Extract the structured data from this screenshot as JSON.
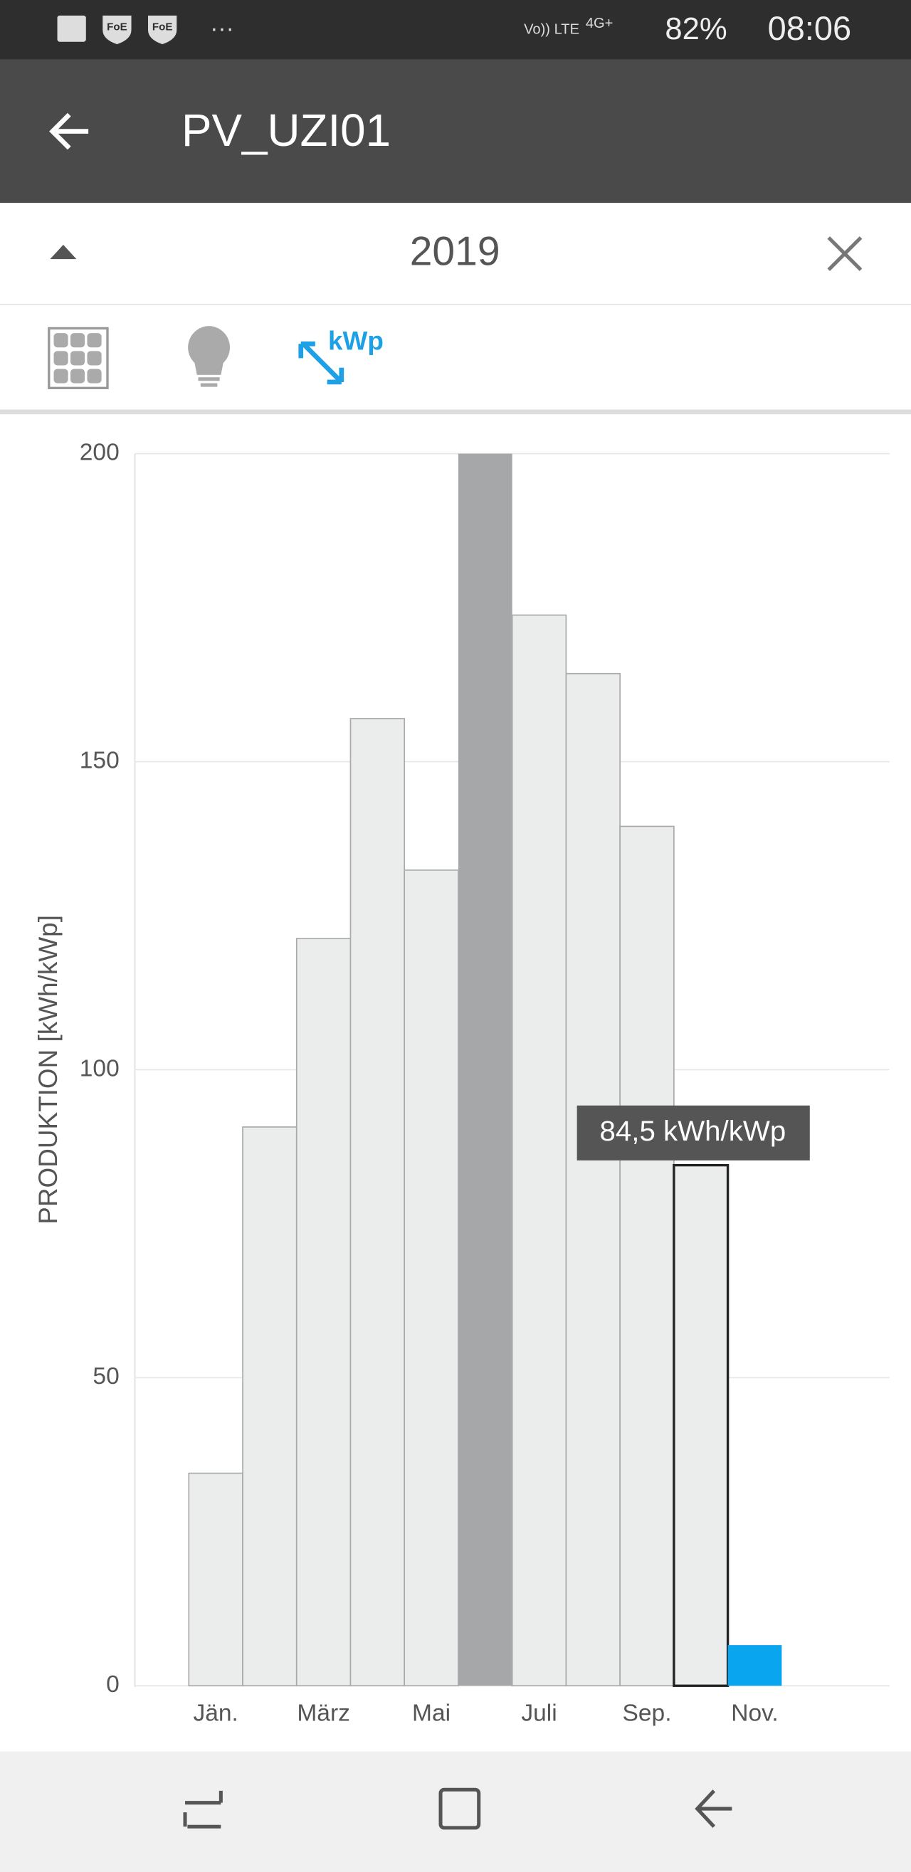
{
  "status_bar": {
    "icons_left": [
      "FoE",
      "FoE",
      "···"
    ],
    "network": "Vo)) LTE",
    "signal": "4G+",
    "battery": "82%",
    "time": "08:06"
  },
  "app_bar": {
    "title": "PV_UZI01"
  },
  "period": {
    "year": "2019"
  },
  "toolbar": {
    "unit_button": "kWp"
  },
  "chart_data": {
    "type": "bar",
    "y_label": "PRODUKTION [kWh/kWp]",
    "categories": [
      "Jän.",
      null,
      "März",
      null,
      "Mai",
      null,
      "Juli",
      null,
      "Sep.",
      null,
      "Nov.",
      null
    ],
    "values": [
      34.5,
      90.7,
      121.3,
      157,
      132.4,
      200,
      173.8,
      164.3,
      139.5,
      84.5,
      6.6,
      null
    ],
    "colors": [
      "#ebecec",
      "#ebecec",
      "#ebecec",
      "#ebecec",
      "#ebecec",
      "#a6a7a9",
      "#ebecec",
      "#ebecec",
      "#ebecec",
      "#ebecec",
      "#0aa5ef",
      "#ebecec"
    ],
    "selected": 9,
    "tooltip": "84,5 kWh/kWp",
    "ylim": [
      0,
      200
    ],
    "yticks": [
      0,
      50,
      100,
      150,
      200
    ],
    "grid": true
  }
}
